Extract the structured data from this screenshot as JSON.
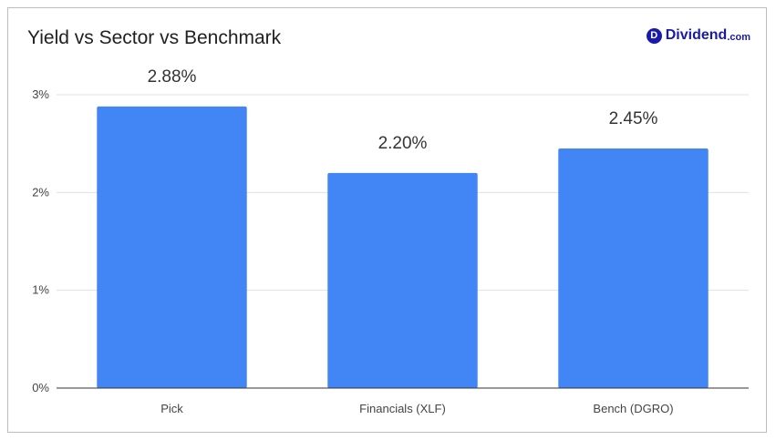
{
  "colors": {
    "bar": "#4285f4",
    "grid": "#e0e0e0",
    "axis": "#333333",
    "text": "#444444",
    "brand": "#1a1aa8"
  },
  "logo": {
    "badge": "D",
    "name": "Dividend",
    "tld": ".com"
  },
  "chart_data": {
    "type": "bar",
    "title": "Yield vs Sector vs Benchmark",
    "categories": [
      "Pick",
      "Financials (XLF)",
      "Bench (DGRO)"
    ],
    "values": [
      2.88,
      2.2,
      2.45
    ],
    "data_labels": [
      "2.88%",
      "2.20%",
      "2.45%"
    ],
    "ylim": [
      0,
      3
    ],
    "yticks": [
      0,
      1,
      2,
      3
    ],
    "ytick_labels": [
      "0%",
      "1%",
      "2%",
      "3%"
    ],
    "grid": true,
    "legend": "none"
  }
}
